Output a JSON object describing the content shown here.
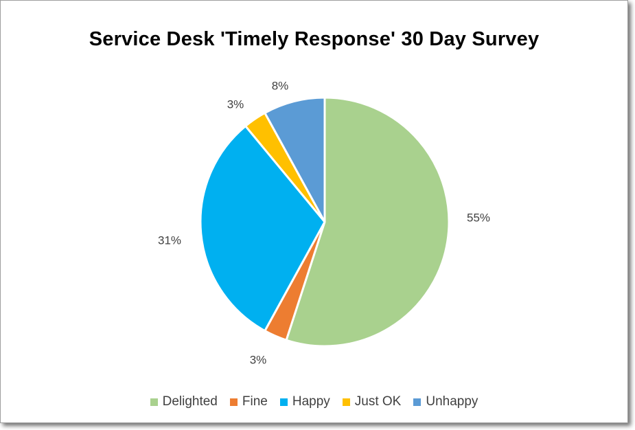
{
  "chart_data": {
    "type": "pie",
    "title": "Service Desk 'Timely Response' 30 Day Survey",
    "categories": [
      "Delighted",
      "Fine",
      "Happy",
      "Just OK",
      "Unhappy"
    ],
    "values": [
      55,
      3,
      31,
      3,
      8
    ],
    "labels": [
      "55%",
      "3%",
      "31%",
      "3%",
      "8%"
    ],
    "colors": [
      "#a9d18e",
      "#ed7d31",
      "#00b0f0",
      "#ffc000",
      "#5b9bd5"
    ],
    "legend": "bottom",
    "start_angle_deg": 0,
    "direction": "clockwise"
  }
}
